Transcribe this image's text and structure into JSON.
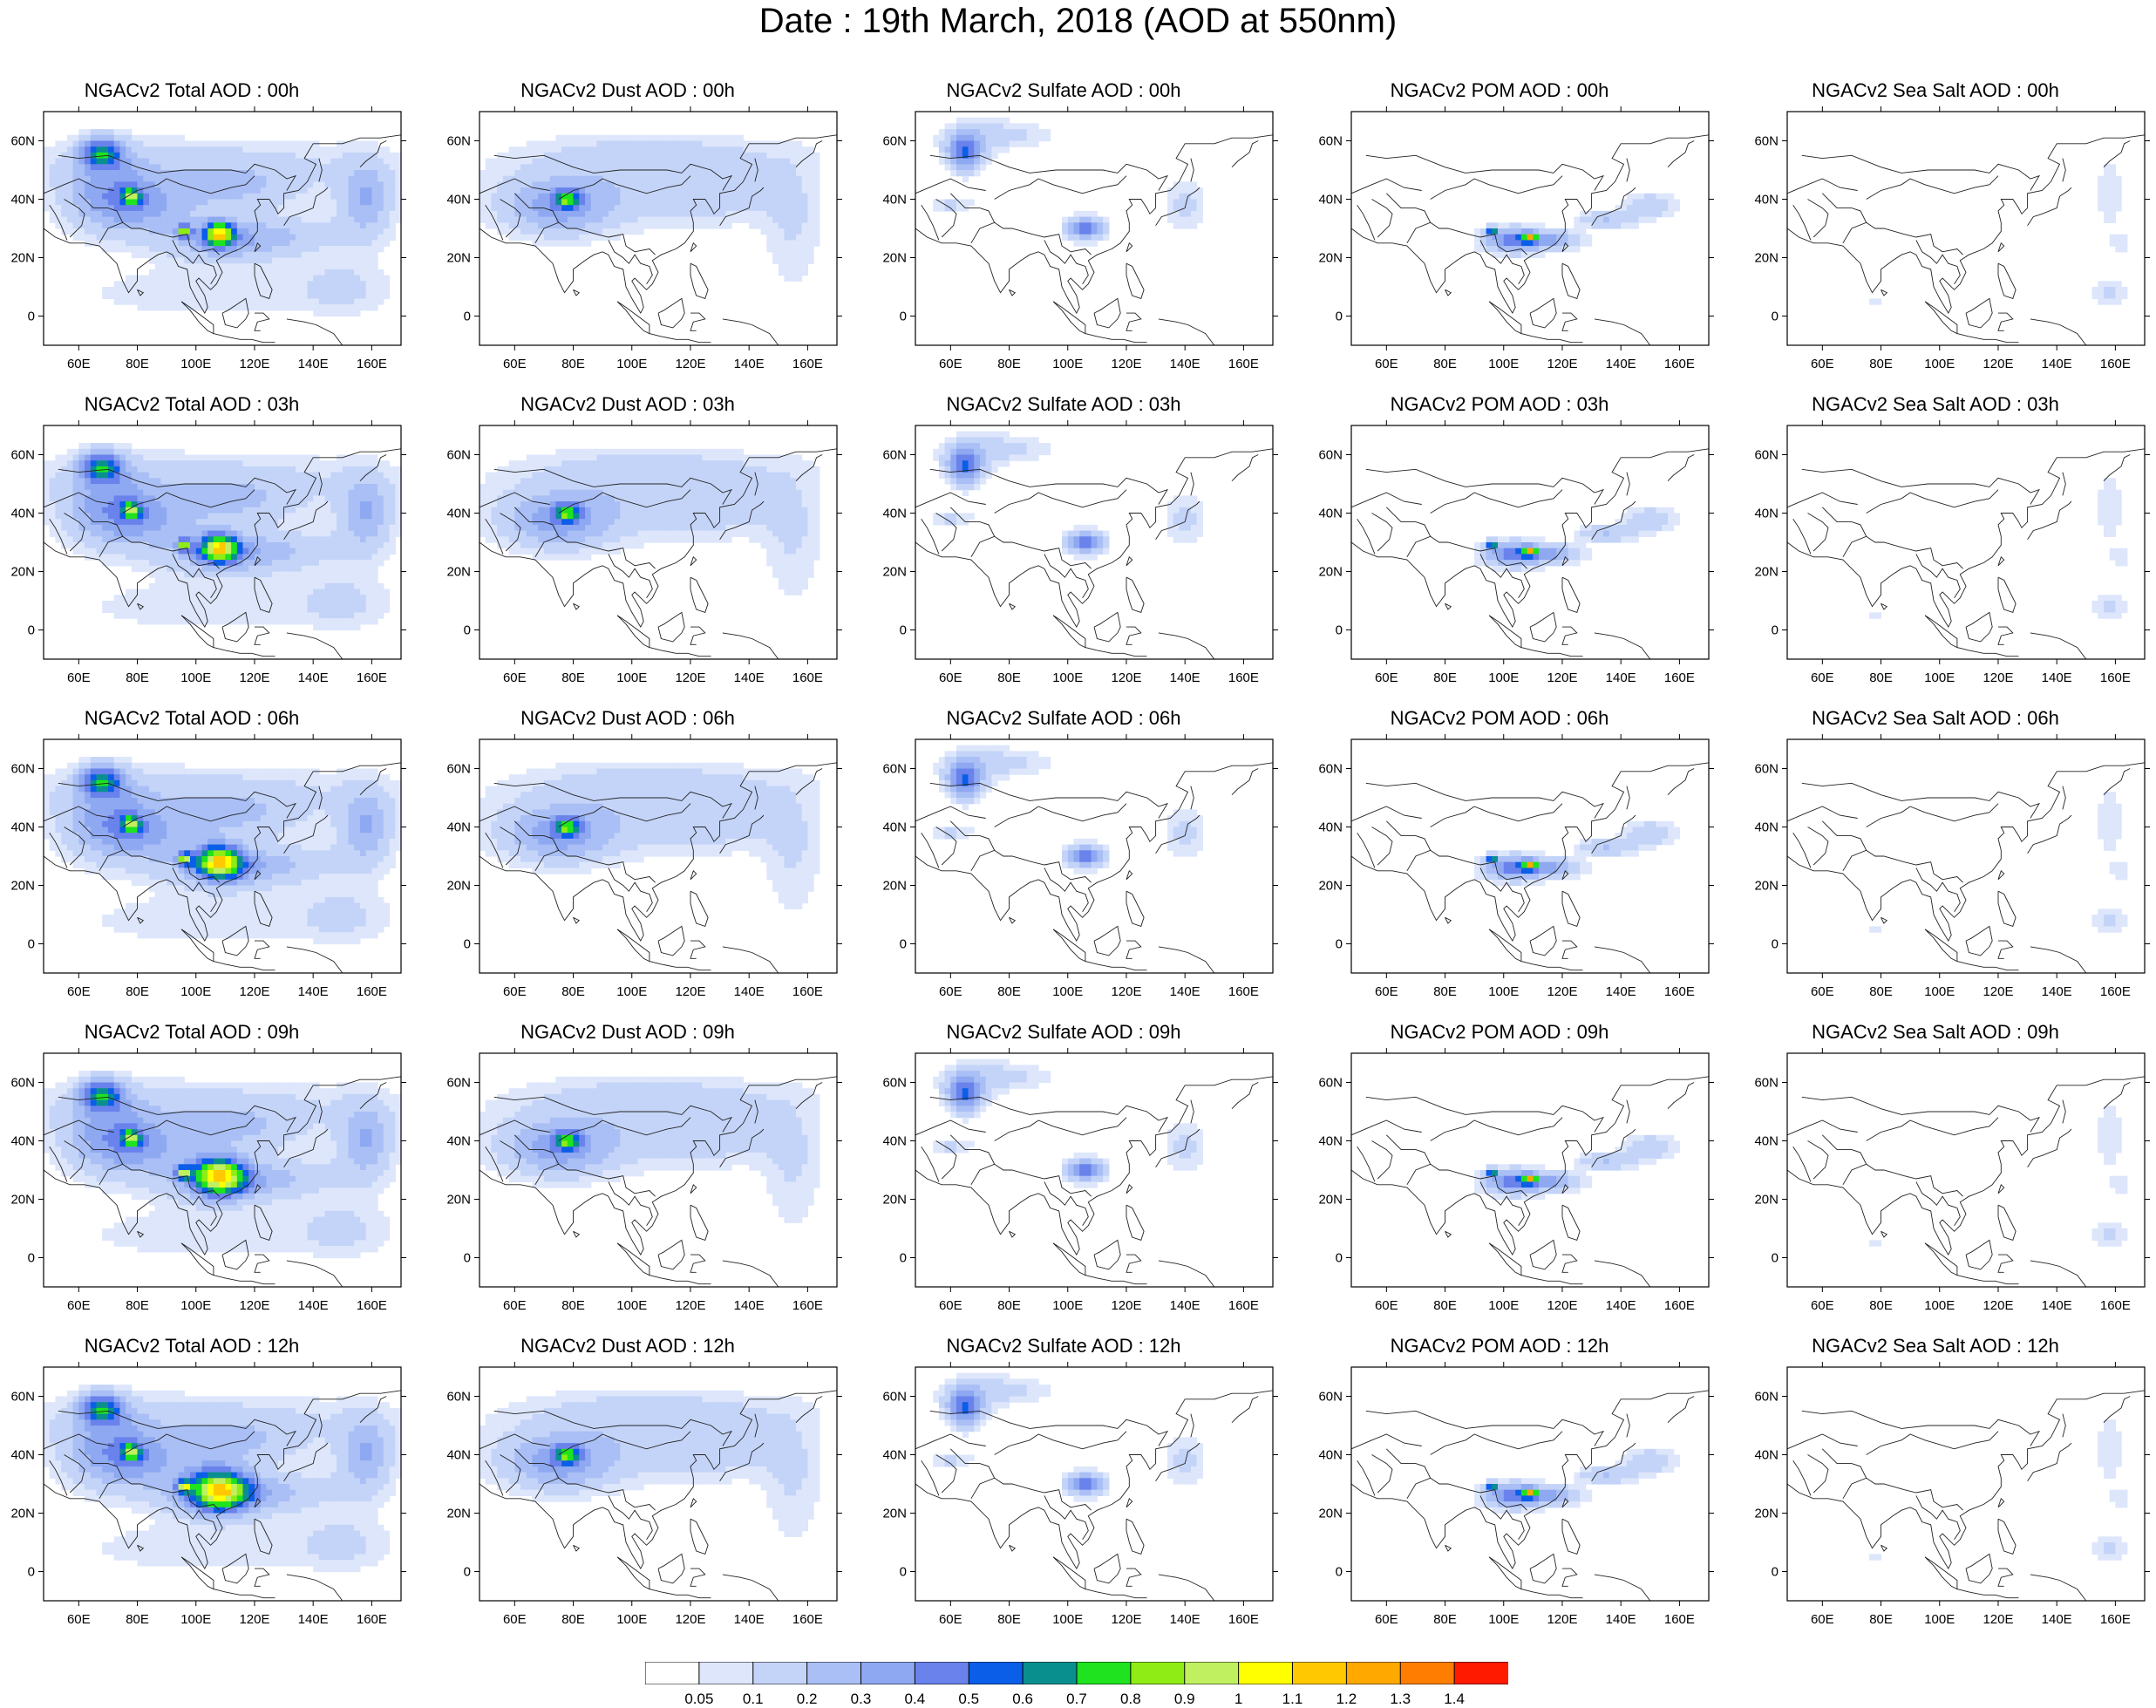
{
  "title": "Date : 19th March, 2018 (AOD at 550nm)",
  "panels": [
    [
      "NGACv2 Total AOD : 00h",
      "NGACv2 Dust AOD : 00h",
      "NGACv2 Sulfate AOD : 00h",
      "NGACv2 POM AOD : 00h",
      "NGACv2 Sea Salt AOD : 00h"
    ],
    [
      "NGACv2 Total AOD : 03h",
      "NGACv2 Dust AOD : 03h",
      "NGACv2 Sulfate AOD : 03h",
      "NGACv2 POM AOD : 03h",
      "NGACv2 Sea Salt AOD : 03h"
    ],
    [
      "NGACv2 Total AOD : 06h",
      "NGACv2 Dust AOD : 06h",
      "NGACv2 Sulfate AOD : 06h",
      "NGACv2 POM AOD : 06h",
      "NGACv2 Sea Salt AOD : 06h"
    ],
    [
      "NGACv2 Total AOD : 09h",
      "NGACv2 Dust AOD : 09h",
      "NGACv2 Sulfate AOD : 09h",
      "NGACv2 POM AOD : 09h",
      "NGACv2 Sea Salt  AOD : 09h"
    ],
    [
      "NGACv2 Total AOD  : 12h",
      "NGACv2 Dust AOD : 12h",
      "NGACv2 Sulfate AOD : 12h",
      "NGACv2 POM  AOD : 12h",
      "NGACv2 Sea Salt  AOD : 12h"
    ]
  ],
  "axes": {
    "x_ticks": [
      "60E",
      "80E",
      "100E",
      "120E",
      "140E",
      "160E"
    ],
    "y_ticks": [
      "60N",
      "40N",
      "20N",
      "0"
    ],
    "lon_range": [
      48,
      170
    ],
    "lat_range": [
      -10,
      70
    ]
  },
  "colorbar": {
    "labels": [
      "0.05",
      "0.1",
      "0.2",
      "0.3",
      "0.4",
      "0.5",
      "0.6",
      "0.7",
      "0.8",
      "0.9",
      "1",
      "1.1",
      "1.2",
      "1.3",
      "1.4"
    ],
    "colors": [
      "#ffffff",
      "#dde6fb",
      "#c4d4f8",
      "#a9bff5",
      "#8ea8f1",
      "#6a82ec",
      "#0a5ee8",
      "#0a8f8f",
      "#1ee31e",
      "#8fec14",
      "#c0f060",
      "#ffff00",
      "#ffc800",
      "#ffa800",
      "#ff7d00",
      "#ff1a00"
    ]
  }
}
